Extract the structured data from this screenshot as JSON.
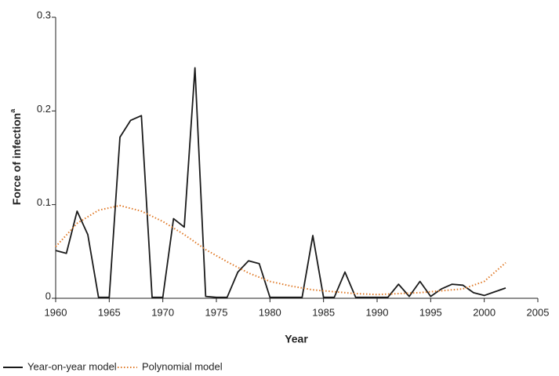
{
  "chart_data": {
    "type": "line",
    "xlabel": "Year",
    "ylabel": "Force of infection",
    "ylabel_note": "a",
    "xlim": [
      1960,
      2005
    ],
    "xticks": [
      1960,
      1965,
      1970,
      1975,
      1980,
      1985,
      1990,
      1995,
      2000,
      2005
    ],
    "ylim": [
      0,
      0.3
    ],
    "yticks": [
      0,
      0.1,
      0.2,
      0.3
    ],
    "legend": "bottom-left",
    "series": [
      {
        "name": "Year-on-year model",
        "color": "#1a1a1a",
        "style": "solid",
        "x": [
          1960,
          1961,
          1962,
          1963,
          1964,
          1965,
          1966,
          1967,
          1968,
          1969,
          1970,
          1971,
          1972,
          1973,
          1974,
          1975,
          1976,
          1977,
          1978,
          1979,
          1980,
          1981,
          1982,
          1983,
          1984,
          1985,
          1986,
          1987,
          1988,
          1989,
          1990,
          1991,
          1992,
          1993,
          1994,
          1995,
          1996,
          1997,
          1998,
          1999,
          2000,
          2001,
          2002
        ],
        "values": [
          0.051,
          0.048,
          0.093,
          0.068,
          0.001,
          0.001,
          0.172,
          0.19,
          0.195,
          0.001,
          0.001,
          0.085,
          0.076,
          0.246,
          0.002,
          0.001,
          0.001,
          0.028,
          0.04,
          0.037,
          0.001,
          0.001,
          0.001,
          0.001,
          0.067,
          0.001,
          0.001,
          0.028,
          0.001,
          0.001,
          0.001,
          0.001,
          0.015,
          0.002,
          0.018,
          0.002,
          0.01,
          0.015,
          0.014,
          0.006,
          0.003,
          0.007,
          0.011
        ]
      },
      {
        "name": "Polynomial model",
        "color": "#e07b2a",
        "style": "dotted",
        "x": [
          1960,
          1962,
          1964,
          1966,
          1968,
          1970,
          1972,
          1974,
          1976,
          1978,
          1980,
          1982,
          1984,
          1986,
          1988,
          1990,
          1992,
          1994,
          1996,
          1998,
          2000,
          2002
        ],
        "values": [
          0.055,
          0.08,
          0.094,
          0.099,
          0.093,
          0.082,
          0.068,
          0.052,
          0.039,
          0.027,
          0.018,
          0.013,
          0.009,
          0.007,
          0.005,
          0.004,
          0.005,
          0.006,
          0.008,
          0.01,
          0.018,
          0.038
        ]
      }
    ]
  }
}
